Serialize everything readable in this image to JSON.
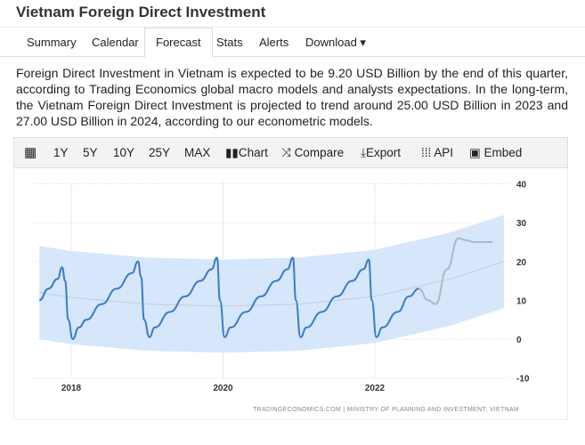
{
  "title": "Vietnam Foreign Direct Investment",
  "tabs": [
    {
      "label": "Summary"
    },
    {
      "label": "Calendar"
    },
    {
      "label": "Forecast",
      "active": true
    },
    {
      "label": "Stats"
    },
    {
      "label": "Alerts"
    },
    {
      "label": "Download ▾"
    }
  ],
  "description": "Foreign Direct Investment in Vietnam is expected to be 9.20 USD Billion by the end of this quarter, according to Trading Economics global macro models and analysts expectations. In the long-term, the Vietnam Foreign Direct Investment is projected to trend around 25.00 USD Billion in 2023 and 27.00 USD Billion in 2024, according to our econometric models.",
  "toolbar": {
    "calendar_icon": "calendar-icon",
    "ranges": [
      "1Y",
      "5Y",
      "10Y",
      "25Y",
      "MAX"
    ],
    "chart": "Chart",
    "compare": "Compare",
    "export": "Export",
    "api": "API",
    "embed": "Embed"
  },
  "chart_data": {
    "type": "line",
    "title": "",
    "xlabel": "",
    "ylabel": "",
    "xlim": [
      2017.58,
      2023.7
    ],
    "ylim": [
      -10,
      40
    ],
    "y_ticks": [
      "40",
      "30",
      "20",
      "10",
      "0",
      "-10"
    ],
    "x_ticks": [
      "2018",
      "2020",
      "2022"
    ],
    "y_axis_position": "right",
    "grid": true,
    "source": "TRADINGECONOMICS.COM | MINISTRY OF PLANNING AND INVESTMENT, VIETNAM",
    "colors": {
      "actual": "#3a7cc3",
      "forecast": "#b0b8c4",
      "band": "#d6e6fb",
      "trend": "#c8d0dc"
    },
    "series": [
      {
        "key": "actual",
        "x": [
          2017.58,
          2017.7,
          2017.82,
          2017.88,
          2017.92,
          2017.96,
          2018.02,
          2018.1,
          2018.2,
          2018.4,
          2018.6,
          2018.8,
          2018.88,
          2018.92,
          2018.96,
          2019.03,
          2019.1,
          2019.3,
          2019.5,
          2019.7,
          2019.85,
          2019.92,
          2019.96,
          2020.02,
          2020.1,
          2020.3,
          2020.5,
          2020.7,
          2020.85,
          2020.92,
          2020.96,
          2021.02,
          2021.1,
          2021.3,
          2021.5,
          2021.7,
          2021.85,
          2021.92,
          2021.96,
          2022.02,
          2022.1,
          2022.3,
          2022.45,
          2022.58
        ],
        "y": [
          10,
          13,
          15.5,
          18.5,
          15,
          5,
          0,
          3,
          5,
          9,
          13,
          17,
          20,
          16,
          5,
          0.5,
          3,
          7,
          11,
          15,
          18,
          21,
          10,
          0.5,
          3,
          7,
          11,
          15,
          18,
          21,
          10,
          0.5,
          3,
          7,
          11,
          15,
          18,
          20.5,
          10,
          0.5,
          3,
          7,
          11,
          13
        ]
      },
      {
        "key": "forecast",
        "x": [
          2022.58,
          2022.7,
          2022.8,
          2022.95,
          2023.1,
          2023.2,
          2023.3,
          2023.55
        ],
        "y": [
          13,
          10,
          9,
          18,
          26,
          25.5,
          25,
          25
        ]
      }
    ],
    "confidence_band": {
      "x": [
        2017.58,
        2018,
        2019,
        2020,
        2021,
        2022,
        2023,
        2023.7
      ],
      "upper": [
        24,
        22.7,
        21,
        20.5,
        21,
        23,
        27.5,
        32
      ],
      "lower": [
        0,
        -1.3,
        -3,
        -3.5,
        -3,
        -1,
        3.5,
        8
      ]
    }
  }
}
